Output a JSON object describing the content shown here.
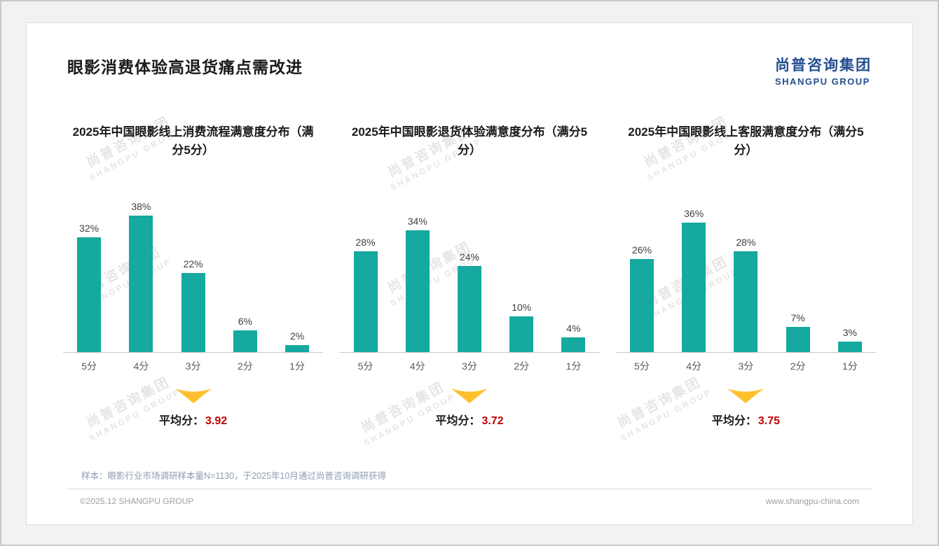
{
  "page": {
    "title": "眼影消费体验高退货痛点需改进",
    "logo": {
      "cn": "尚普咨询集团",
      "en": "SHANGPU GROUP"
    },
    "watermark": {
      "cn": "尚普咨询集团",
      "en": "SHANGPU GROUP"
    },
    "footnote": "样本：眼影行业市场调研样本量N=1130，于2025年10月通过尚普咨询调研获得",
    "copyright": "©2025.12 SHANGPU GROUP",
    "website": "www.shangpu-china.com"
  },
  "colors": {
    "bar": "#15a99f",
    "average_value": "#c00000",
    "arrow": "#ffc02e",
    "arrow_light": "#ffd966",
    "logo": "#234e8f"
  },
  "average_label": "平均分：",
  "chart_data": [
    {
      "type": "bar",
      "title": "2025年中国眼影线上消费流程满意度分布（满分5分）",
      "categories": [
        "5分",
        "4分",
        "3分",
        "2分",
        "1分"
      ],
      "values": [
        32,
        38,
        22,
        6,
        2
      ],
      "value_labels": [
        "32%",
        "38%",
        "22%",
        "6%",
        "2%"
      ],
      "average": "3.92",
      "ylabel": "",
      "xlabel": "",
      "ylim": [
        0,
        40
      ],
      "grid": false,
      "legend": "none"
    },
    {
      "type": "bar",
      "title": "2025年中国眼影退货体验满意度分布（满分5分）",
      "categories": [
        "5分",
        "4分",
        "3分",
        "2分",
        "1分"
      ],
      "values": [
        28,
        34,
        24,
        10,
        4
      ],
      "value_labels": [
        "28%",
        "34%",
        "24%",
        "10%",
        "4%"
      ],
      "average": "3.72",
      "ylabel": "",
      "xlabel": "",
      "ylim": [
        0,
        40
      ],
      "grid": false,
      "legend": "none"
    },
    {
      "type": "bar",
      "title": "2025年中国眼影线上客服满意度分布（满分5分）",
      "categories": [
        "5分",
        "4分",
        "3分",
        "2分",
        "1分"
      ],
      "values": [
        26,
        36,
        28,
        7,
        3
      ],
      "value_labels": [
        "26%",
        "36%",
        "28%",
        "7%",
        "3%"
      ],
      "average": "3.75",
      "ylabel": "",
      "xlabel": "",
      "ylim": [
        0,
        40
      ],
      "grid": false,
      "legend": "none"
    }
  ]
}
